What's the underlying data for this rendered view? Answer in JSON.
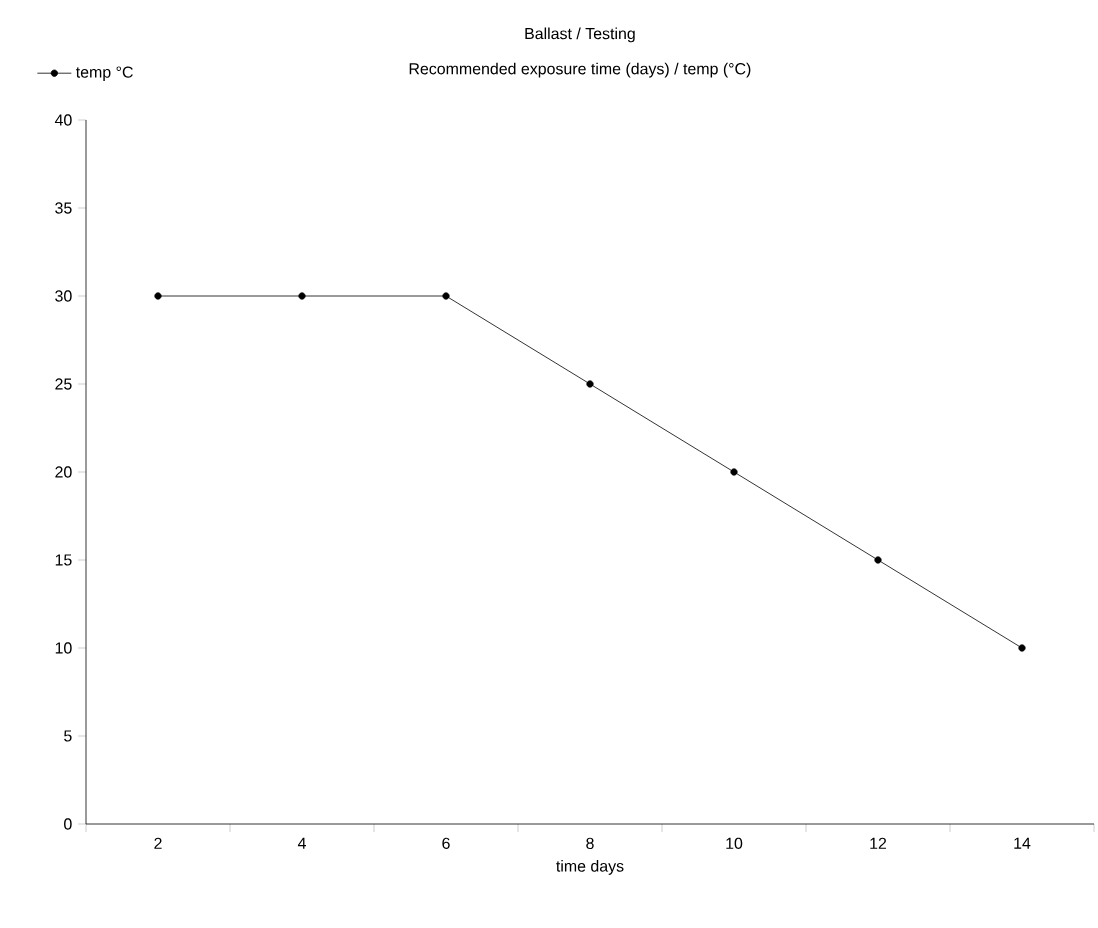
{
  "chart_data": {
    "type": "line",
    "title": "Ballast / Testing",
    "subtitle": "Recommended exposure time (days) / temp (°C)",
    "xlabel": "time days",
    "categories": [
      "2",
      "4",
      "6",
      "8",
      "10",
      "12",
      "14"
    ],
    "series": [
      {
        "name": "temp  °C",
        "color": "#000000",
        "values": [
          30,
          30,
          30,
          25,
          20,
          15,
          10
        ]
      }
    ],
    "ylim": [
      0,
      40
    ],
    "yticks": [
      0,
      5,
      10,
      15,
      20,
      25,
      30,
      35,
      40
    ],
    "grid": false,
    "legend": "top left",
    "marker": "circle",
    "line_style": "solid"
  }
}
